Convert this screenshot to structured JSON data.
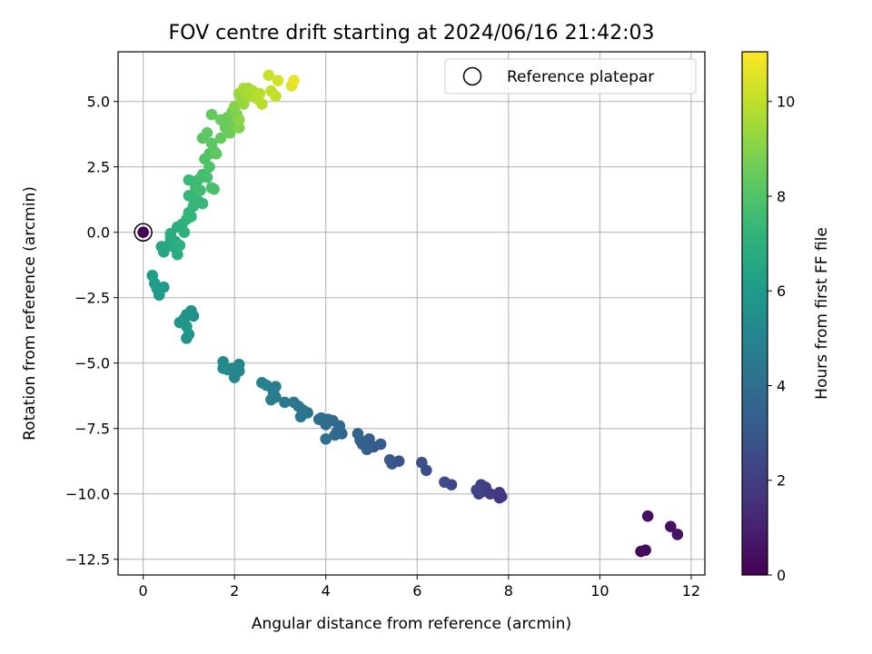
{
  "chart_data": {
    "type": "scatter",
    "title": "FOV centre drift starting at 2024/06/16 21:42:03",
    "xlabel": "Angular distance from reference (arcmin)",
    "ylabel": "Rotation from reference (arcmin)",
    "xlim": [
      -0.55,
      12.3
    ],
    "ylim": [
      -13.1,
      6.9
    ],
    "xticks": [
      "0",
      "2",
      "4",
      "6",
      "8",
      "10",
      "12"
    ],
    "yticks": [
      "−12.5",
      "−10.0",
      "−7.5",
      "−5.0",
      "−2.5",
      "0.0",
      "2.5",
      "5.0"
    ],
    "grid": true,
    "legend": {
      "position": "top-right",
      "entries": [
        "Reference platepar"
      ]
    },
    "reference_point": {
      "x": 0,
      "y": 0
    },
    "colorbar": {
      "label": "Hours from first FF file",
      "range": [
        0,
        11.05
      ],
      "ticks": [
        "0",
        "2",
        "4",
        "6",
        "8",
        "10"
      ],
      "colormap": "viridis"
    },
    "points": [
      [
        0.0,
        0.0,
        0.05
      ],
      [
        10.9,
        -12.2,
        0.2
      ],
      [
        11.0,
        -12.15,
        0.3
      ],
      [
        11.05,
        -10.85,
        0.4
      ],
      [
        11.55,
        -11.25,
        0.5
      ],
      [
        11.7,
        -11.55,
        0.6
      ],
      [
        7.8,
        -10.15,
        1.6
      ],
      [
        7.85,
        -10.1,
        1.7
      ],
      [
        7.8,
        -9.95,
        1.8
      ],
      [
        7.6,
        -10.0,
        1.9
      ],
      [
        7.45,
        -9.9,
        2.0
      ],
      [
        7.5,
        -9.75,
        2.05
      ],
      [
        7.4,
        -9.65,
        2.1
      ],
      [
        7.35,
        -10.0,
        2.15
      ],
      [
        7.3,
        -9.85,
        2.2
      ],
      [
        6.75,
        -9.65,
        2.4
      ],
      [
        6.6,
        -9.55,
        2.5
      ],
      [
        6.2,
        -9.1,
        2.6
      ],
      [
        6.1,
        -8.8,
        2.7
      ],
      [
        5.6,
        -8.75,
        2.8
      ],
      [
        5.45,
        -8.85,
        2.9
      ],
      [
        5.4,
        -8.7,
        3.0
      ],
      [
        5.2,
        -8.1,
        3.1
      ],
      [
        5.05,
        -8.2,
        3.2
      ],
      [
        4.95,
        -7.9,
        3.3
      ],
      [
        4.9,
        -8.3,
        3.35
      ],
      [
        4.8,
        -8.1,
        3.4
      ],
      [
        4.75,
        -7.95,
        3.45
      ],
      [
        4.7,
        -7.7,
        3.5
      ],
      [
        4.35,
        -7.7,
        3.6
      ],
      [
        4.3,
        -7.4,
        3.65
      ],
      [
        4.25,
        -7.6,
        3.7
      ],
      [
        4.15,
        -7.2,
        3.75
      ],
      [
        4.2,
        -7.75,
        3.8
      ],
      [
        4.05,
        -7.15,
        3.85
      ],
      [
        4.0,
        -7.35,
        3.9
      ],
      [
        3.95,
        -7.2,
        3.95
      ],
      [
        3.9,
        -7.1,
        4.0
      ],
      [
        3.85,
        -7.15,
        4.05
      ],
      [
        4.0,
        -7.9,
        4.1
      ],
      [
        3.6,
        -6.9,
        4.2
      ],
      [
        3.5,
        -6.8,
        4.25
      ],
      [
        3.45,
        -7.05,
        4.3
      ],
      [
        3.4,
        -6.65,
        4.35
      ],
      [
        3.3,
        -6.5,
        4.4
      ],
      [
        3.1,
        -6.5,
        4.5
      ],
      [
        2.9,
        -6.3,
        4.6
      ],
      [
        2.85,
        -6.1,
        4.65
      ],
      [
        2.9,
        -5.9,
        4.7
      ],
      [
        2.8,
        -6.4,
        4.75
      ],
      [
        2.7,
        -5.85,
        4.8
      ],
      [
        2.6,
        -5.75,
        4.85
      ],
      [
        2.1,
        -5.05,
        5.0
      ],
      [
        2.1,
        -5.3,
        5.05
      ],
      [
        2.0,
        -5.55,
        5.1
      ],
      [
        1.95,
        -5.2,
        5.15
      ],
      [
        1.85,
        -5.25,
        5.2
      ],
      [
        1.75,
        -5.2,
        5.25
      ],
      [
        1.75,
        -4.95,
        5.3
      ],
      [
        1.1,
        -3.2,
        5.5
      ],
      [
        1.05,
        -3.0,
        5.55
      ],
      [
        1.0,
        -3.9,
        5.6
      ],
      [
        0.95,
        -4.05,
        5.65
      ],
      [
        0.9,
        -3.3,
        5.7
      ],
      [
        0.95,
        -3.15,
        5.75
      ],
      [
        0.8,
        -3.45,
        5.8
      ],
      [
        0.95,
        -3.6,
        5.85
      ],
      [
        0.45,
        -2.1,
        6.0
      ],
      [
        0.35,
        -2.4,
        6.05
      ],
      [
        0.3,
        -2.15,
        6.1
      ],
      [
        0.25,
        -1.95,
        6.15
      ],
      [
        0.2,
        -1.65,
        6.2
      ],
      [
        0.4,
        -0.55,
        6.5
      ],
      [
        0.45,
        -0.75,
        6.55
      ],
      [
        0.55,
        -0.5,
        6.6
      ],
      [
        0.6,
        -0.2,
        6.65
      ],
      [
        0.65,
        -0.55,
        6.7
      ],
      [
        0.7,
        -0.35,
        6.75
      ],
      [
        0.75,
        -0.85,
        6.8
      ],
      [
        0.6,
        -0.05,
        6.85
      ],
      [
        0.75,
        0.2,
        6.9
      ],
      [
        0.8,
        -0.5,
        6.95
      ],
      [
        0.85,
        0.3,
        7.0
      ],
      [
        0.9,
        0.0,
        7.05
      ],
      [
        0.95,
        0.5,
        7.1
      ],
      [
        1.0,
        0.75,
        7.15
      ],
      [
        1.05,
        0.6,
        7.2
      ],
      [
        1.1,
        1.0,
        7.25
      ],
      [
        1.0,
        1.4,
        7.3
      ],
      [
        1.1,
        1.3,
        7.35
      ],
      [
        1.2,
        1.2,
        7.4
      ],
      [
        1.3,
        1.1,
        7.45
      ],
      [
        1.0,
        2.0,
        7.5
      ],
      [
        1.15,
        1.7,
        7.55
      ],
      [
        1.2,
        2.0,
        7.6
      ],
      [
        1.25,
        1.6,
        7.65
      ],
      [
        1.3,
        2.2,
        7.7
      ],
      [
        1.4,
        2.1,
        7.75
      ],
      [
        1.5,
        1.7,
        7.8
      ],
      [
        1.55,
        1.65,
        7.85
      ],
      [
        1.45,
        2.5,
        7.9
      ],
      [
        1.35,
        2.8,
        8.0
      ],
      [
        1.45,
        3.0,
        8.05
      ],
      [
        1.55,
        3.1,
        8.1
      ],
      [
        1.3,
        3.6,
        8.15
      ],
      [
        1.5,
        3.4,
        8.2
      ],
      [
        1.4,
        3.8,
        8.25
      ],
      [
        1.6,
        3.0,
        8.3
      ],
      [
        1.5,
        4.5,
        8.35
      ],
      [
        1.7,
        3.6,
        8.4
      ],
      [
        1.8,
        4.0,
        8.45
      ],
      [
        1.7,
        4.3,
        8.5
      ],
      [
        1.85,
        4.4,
        8.55
      ],
      [
        1.9,
        3.8,
        8.6
      ],
      [
        2.0,
        4.1,
        8.65
      ],
      [
        1.95,
        4.6,
        8.7
      ],
      [
        2.05,
        4.5,
        8.8
      ],
      [
        2.1,
        4.0,
        8.9
      ],
      [
        2.0,
        4.8,
        9.0
      ],
      [
        2.1,
        4.3,
        9.1
      ],
      [
        2.15,
        5.1,
        9.2
      ],
      [
        2.2,
        4.9,
        9.3
      ],
      [
        2.1,
        5.3,
        9.35
      ],
      [
        2.3,
        5.5,
        9.5
      ],
      [
        2.2,
        5.5,
        9.55
      ],
      [
        2.3,
        5.2,
        9.6
      ],
      [
        2.4,
        5.4,
        9.7
      ],
      [
        2.5,
        5.1,
        9.8
      ],
      [
        2.6,
        4.9,
        9.85
      ],
      [
        2.55,
        5.3,
        9.9
      ],
      [
        2.8,
        5.4,
        10.0
      ],
      [
        2.9,
        5.2,
        10.1
      ],
      [
        2.75,
        6.0,
        10.2
      ],
      [
        2.95,
        5.8,
        10.3
      ],
      [
        3.25,
        5.6,
        10.5
      ],
      [
        3.3,
        5.8,
        10.7
      ]
    ]
  }
}
